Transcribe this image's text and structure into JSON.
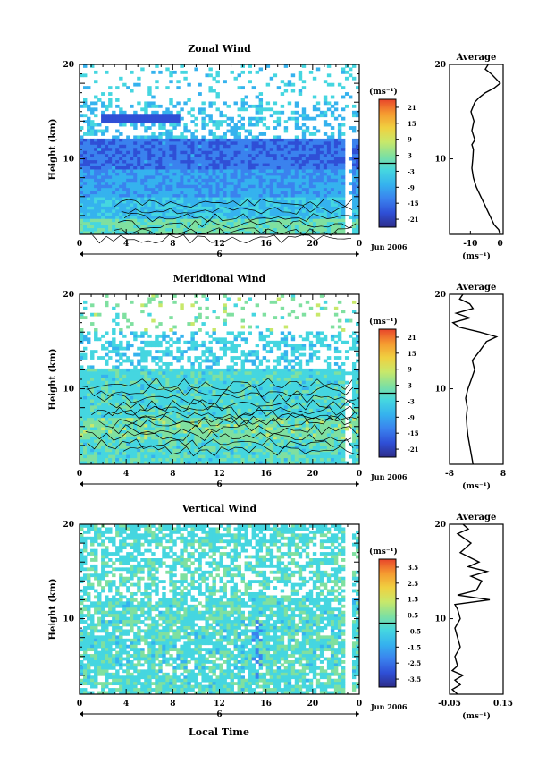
{
  "panels": [
    {
      "id": "zonal",
      "title": "Zonal Wind",
      "cbar_unit": "(ms⁻¹)",
      "cbar_ticks": [
        "21",
        "15",
        "9",
        "3",
        "-3",
        "-9",
        "-15",
        "-21"
      ],
      "avg_title": "Average",
      "avg_xticks": [
        "-10",
        "0"
      ],
      "avg_xunit": "(ms⁻¹)"
    },
    {
      "id": "meridional",
      "title": "Meridional Wind",
      "cbar_unit": "(ms⁻¹)",
      "cbar_ticks": [
        "21",
        "15",
        "9",
        "3",
        "-3",
        "-9",
        "-15",
        "-21"
      ],
      "avg_title": "Average",
      "avg_xticks": [
        "-8",
        "8"
      ],
      "avg_xunit": "(ms⁻¹)"
    },
    {
      "id": "vertical",
      "title": "Vertical Wind",
      "cbar_unit": "(ms⁻¹)",
      "cbar_ticks": [
        "3.5",
        "2.5",
        "1.5",
        "0.5",
        "-0.5",
        "-1.5",
        "-2.5",
        "-3.5"
      ],
      "avg_title": "Average",
      "avg_xticks": [
        "-0.05",
        "0.15"
      ],
      "avg_xunit": "(ms⁻¹)"
    }
  ],
  "shared": {
    "xticks": [
      "0",
      "4",
      "8",
      "12",
      "16",
      "20",
      "0"
    ],
    "yticks": [
      "20",
      "10"
    ],
    "avg_yticks": [
      "20",
      "10"
    ],
    "ylabel": "Height (km)",
    "date_marker": "6",
    "date_label": "Jun 2006",
    "xlabel": "Local Time"
  },
  "colormap": [
    "#2d2d8a",
    "#2f4fd6",
    "#3a82ee",
    "#35b2ee",
    "#45d6e0",
    "#7fe0a0",
    "#c8e86a",
    "#f0d040",
    "#f59a30",
    "#e8452a"
  ],
  "chart_data": [
    {
      "type": "heatmap",
      "title": "Zonal Wind",
      "xlabel": "Local Time",
      "ylabel": "Height (km)",
      "xlim": [
        0,
        24
      ],
      "ylim": [
        2,
        20
      ],
      "units": "ms-1",
      "clim": [
        -21,
        21
      ],
      "colorbar_ticks": [
        21,
        15,
        9,
        3,
        -3,
        -9,
        -15,
        -21
      ],
      "description_values": {
        "tropopause_jet_height_km": 11,
        "jet_speed": -18
      }
    },
    {
      "type": "line",
      "title": "Average",
      "ylabel": "Height (km)",
      "xlabel": "(ms-1)",
      "xlim": [
        -17,
        1
      ],
      "ylim": [
        2,
        20
      ],
      "series": [
        {
          "values": [
            [
              0,
              2
            ],
            [
              -0.5,
              2.5
            ],
            [
              -2,
              3
            ],
            [
              -3.5,
              4
            ],
            [
              -5,
              5
            ],
            [
              -6.5,
              6
            ],
            [
              -8,
              7
            ],
            [
              -9,
              8
            ],
            [
              -9.5,
              9
            ],
            [
              -9.2,
              10
            ],
            [
              -9,
              11
            ],
            [
              -9.5,
              11.5
            ],
            [
              -8.5,
              12
            ],
            [
              -9.5,
              13
            ],
            [
              -8.8,
              14
            ],
            [
              -9.8,
              15
            ],
            [
              -8.5,
              16
            ],
            [
              -7,
              16.5
            ],
            [
              -5,
              17
            ],
            [
              -2,
              17.5
            ],
            [
              0,
              18
            ],
            [
              -1.5,
              18.5
            ],
            [
              -3,
              19
            ],
            [
              -5,
              19.5
            ],
            [
              -4,
              20
            ]
          ]
        }
      ]
    },
    {
      "type": "heatmap",
      "title": "Meridional Wind",
      "xlabel": "Local Time",
      "ylabel": "Height (km)",
      "xlim": [
        0,
        24
      ],
      "ylim": [
        2,
        20
      ],
      "units": "ms-1",
      "clim": [
        -21,
        21
      ],
      "colorbar_ticks": [
        21,
        15,
        9,
        3,
        -3,
        -9,
        -15,
        -21
      ]
    },
    {
      "type": "line",
      "title": "Average",
      "ylabel": "Height (km)",
      "xlabel": "(ms-1)",
      "xlim": [
        -8,
        8
      ],
      "ylim": [
        2,
        20
      ],
      "series": [
        {
          "values": [
            [
              -1,
              2
            ],
            [
              -1.5,
              3
            ],
            [
              -2,
              4
            ],
            [
              -2.5,
              5
            ],
            [
              -2.8,
              6
            ],
            [
              -3,
              7
            ],
            [
              -2.7,
              8
            ],
            [
              -3.2,
              9
            ],
            [
              -2.5,
              10
            ],
            [
              -1.5,
              11
            ],
            [
              -0.5,
              12
            ],
            [
              -1.2,
              13
            ],
            [
              1,
              14
            ],
            [
              3,
              15
            ],
            [
              6,
              15.5
            ],
            [
              1,
              16
            ],
            [
              -5,
              16.5
            ],
            [
              -7,
              17
            ],
            [
              -2,
              17.5
            ],
            [
              -6,
              18
            ],
            [
              -1,
              18.5
            ],
            [
              -2,
              19
            ],
            [
              -5,
              19.5
            ],
            [
              -4,
              20
            ]
          ]
        }
      ]
    },
    {
      "type": "heatmap",
      "title": "Vertical Wind",
      "xlabel": "Local Time",
      "ylabel": "Height (km)",
      "xlim": [
        0,
        24
      ],
      "ylim": [
        2,
        20
      ],
      "units": "ms-1",
      "clim": [
        -3.5,
        3.5
      ],
      "colorbar_ticks": [
        3.5,
        2.5,
        1.5,
        0.5,
        -0.5,
        -1.5,
        -2.5,
        -3.5
      ]
    },
    {
      "type": "line",
      "title": "Average",
      "ylabel": "Height (km)",
      "xlabel": "(ms-1)",
      "xlim": [
        -0.05,
        0.15
      ],
      "ylim": [
        2,
        20
      ],
      "series": [
        {
          "values": [
            [
              -0.02,
              2
            ],
            [
              -0.04,
              2.5
            ],
            [
              -0.01,
              3
            ],
            [
              -0.03,
              3.5
            ],
            [
              0,
              4
            ],
            [
              -0.04,
              4.5
            ],
            [
              -0.02,
              5
            ],
            [
              -0.03,
              6
            ],
            [
              -0.01,
              7
            ],
            [
              -0.02,
              8
            ],
            [
              -0.03,
              9
            ],
            [
              -0.01,
              10
            ],
            [
              -0.02,
              11
            ],
            [
              -0.03,
              11.5
            ],
            [
              0.1,
              12
            ],
            [
              -0.02,
              12.5
            ],
            [
              0.05,
              13
            ],
            [
              0.07,
              14
            ],
            [
              0.03,
              14.5
            ],
            [
              0.09,
              15
            ],
            [
              0.02,
              15.5
            ],
            [
              0.06,
              16
            ],
            [
              -0.01,
              17
            ],
            [
              0.03,
              18
            ],
            [
              -0.02,
              19
            ],
            [
              0.02,
              19.5
            ],
            [
              0,
              20
            ]
          ]
        }
      ]
    }
  ]
}
